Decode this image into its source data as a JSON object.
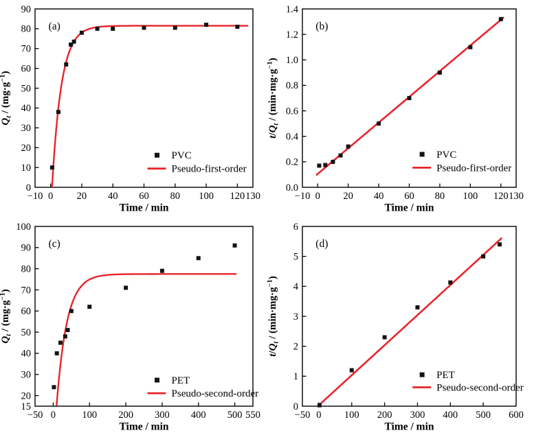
{
  "figure": {
    "background": "#ffffff",
    "frame_color": "#000000",
    "text_color": "#000000",
    "fit_line_color": "#e8232a",
    "marker_color": "#141414"
  },
  "chart_data": [
    {
      "panel": "(a)",
      "type": "scatter",
      "series_label": "PVC",
      "fit_label": "Pseudo-first-order",
      "xlabel": "Time / min",
      "ylabel_tokens": [
        {
          "t": "Q",
          "s": "i"
        },
        {
          "t": "t",
          "s": "sub"
        },
        {
          "t": " / (mg·g",
          "s": "n"
        },
        {
          "t": "−1",
          "s": "sup"
        },
        {
          "t": ")",
          "s": "n"
        }
      ],
      "xlim": [
        -10,
        130
      ],
      "ylim": [
        0,
        90
      ],
      "xticks": [
        -10,
        0,
        20,
        40,
        60,
        80,
        100,
        120,
        130
      ],
      "xtick_labels": [
        "−10",
        "0",
        "20",
        "40",
        "60",
        "80",
        "100",
        "120",
        "130"
      ],
      "yticks": [
        0,
        10,
        20,
        30,
        40,
        50,
        60,
        70,
        80,
        90
      ],
      "ytick_labels": [
        "0",
        "10",
        "20",
        "30",
        "40",
        "50",
        "60",
        "70",
        "80",
        "90"
      ],
      "points": [
        [
          1,
          10
        ],
        [
          5,
          38
        ],
        [
          10,
          62
        ],
        [
          13,
          72
        ],
        [
          15,
          73.5
        ],
        [
          20,
          78
        ],
        [
          30,
          80
        ],
        [
          40,
          80
        ],
        [
          60,
          80.5
        ],
        [
          80,
          80.5
        ],
        [
          100,
          82
        ],
        [
          120,
          81
        ]
      ],
      "fit": {
        "kind": "exp",
        "qe": 81.5,
        "k": 0.165,
        "t0": 0.9,
        "t_start": 0.9,
        "t_end": 127
      },
      "legend": {
        "x": 0.56,
        "rows": [
          0.82,
          0.895
        ],
        "items": [
          {
            "marker": "square",
            "label": "PVC"
          },
          {
            "marker": "line",
            "label": "Pseudo-first-order"
          }
        ]
      }
    },
    {
      "panel": "(b)",
      "type": "scatter",
      "series_label": "PVC",
      "fit_label": "Pseudo-first-order",
      "xlabel": "Time / min",
      "ylabel_tokens": [
        {
          "t": "t",
          "s": "i"
        },
        {
          "t": "/",
          "s": "n"
        },
        {
          "t": "Q",
          "s": "i"
        },
        {
          "t": "t",
          "s": "sub"
        },
        {
          "t": " / (min·mg·g",
          "s": "n"
        },
        {
          "t": "−1",
          "s": "sup"
        },
        {
          "t": ")",
          "s": "n"
        }
      ],
      "xlim": [
        -10,
        130
      ],
      "ylim": [
        0,
        1.4
      ],
      "xticks": [
        -10,
        0,
        20,
        40,
        60,
        80,
        100,
        120,
        130
      ],
      "xtick_labels": [
        "−10",
        "0",
        "20",
        "40",
        "60",
        "80",
        "100",
        "120",
        "130"
      ],
      "yticks": [
        0,
        0.2,
        0.4,
        0.6,
        0.8,
        1.0,
        1.2,
        1.4
      ],
      "ytick_labels": [
        "0.0",
        "0.2",
        "0.4",
        "0.6",
        "0.8",
        "1.0",
        "1.2",
        "1.4"
      ],
      "points": [
        [
          1,
          0.17
        ],
        [
          5,
          0.175
        ],
        [
          10,
          0.2
        ],
        [
          15,
          0.25
        ],
        [
          20,
          0.32
        ],
        [
          40,
          0.5
        ],
        [
          60,
          0.7
        ],
        [
          80,
          0.9
        ],
        [
          100,
          1.1
        ],
        [
          120,
          1.32
        ]
      ],
      "fit": {
        "kind": "linear",
        "x1": -1,
        "y1": 0.095,
        "x2": 122,
        "y2": 1.335
      },
      "legend": {
        "x": 0.56,
        "rows": [
          0.815,
          0.89
        ],
        "items": [
          {
            "marker": "square",
            "label": "PVC"
          },
          {
            "marker": "line",
            "label": "Pseudo-first-order"
          }
        ]
      }
    },
    {
      "panel": "(c)",
      "type": "scatter",
      "series_label": "PET",
      "fit_label": "Pseudo-second-order",
      "xlabel": "Time / min",
      "ylabel_tokens": [
        {
          "t": "Q",
          "s": "i"
        },
        {
          "t": "t",
          "s": "sub"
        },
        {
          "t": " / (mg·g",
          "s": "n"
        },
        {
          "t": "−1",
          "s": "sup"
        },
        {
          "t": ")",
          "s": "n"
        }
      ],
      "xlim": [
        -50,
        550
      ],
      "ylim": [
        15,
        100
      ],
      "xticks": [
        -50,
        0,
        100,
        200,
        300,
        400,
        500,
        550
      ],
      "xtick_labels": [
        "−50",
        "0",
        "100",
        "200",
        "300",
        "400",
        "500",
        "550"
      ],
      "yticks": [
        15,
        20,
        30,
        40,
        50,
        60,
        70,
        80,
        90,
        100
      ],
      "ytick_labels": [
        "15",
        "20",
        "30",
        "40",
        "50",
        "60",
        "70",
        "80",
        "90",
        "100"
      ],
      "points": [
        [
          2,
          24
        ],
        [
          10,
          40
        ],
        [
          20,
          45
        ],
        [
          33,
          48
        ],
        [
          40,
          51
        ],
        [
          50,
          60
        ],
        [
          100,
          62
        ],
        [
          200,
          71
        ],
        [
          300,
          79
        ],
        [
          400,
          85
        ],
        [
          500,
          91
        ]
      ],
      "fit": {
        "kind": "exp",
        "qe": 77.5,
        "k": 0.035,
        "t0": 3,
        "t_start": 9.2,
        "t_end": 505
      },
      "legend": {
        "x": 0.56,
        "rows": [
          0.855,
          0.928
        ],
        "items": [
          {
            "marker": "square",
            "label": "PET"
          },
          {
            "marker": "line",
            "label": "Pseudo-second-order"
          }
        ]
      }
    },
    {
      "panel": "(d)",
      "type": "scatter",
      "series_label": "PET",
      "fit_label": "Pseudo-second-order",
      "xlabel": "Time / min",
      "ylabel_tokens": [
        {
          "t": "t",
          "s": "i"
        },
        {
          "t": "/",
          "s": "n"
        },
        {
          "t": "Q",
          "s": "i"
        },
        {
          "t": "t",
          "s": "sub"
        },
        {
          "t": " / (min·mg·g",
          "s": "n"
        },
        {
          "t": "−1",
          "s": "sup"
        },
        {
          "t": ")",
          "s": "n"
        }
      ],
      "xlim": [
        -50,
        600
      ],
      "ylim": [
        0,
        6
      ],
      "xticks": [
        -50,
        0,
        100,
        200,
        300,
        400,
        500,
        600
      ],
      "xtick_labels": [
        "−50",
        "0",
        "100",
        "200",
        "300",
        "400",
        "500",
        "600"
      ],
      "yticks": [
        0,
        1,
        2,
        3,
        4,
        5,
        6
      ],
      "ytick_labels": [
        "0",
        "1",
        "2",
        "3",
        "4",
        "5",
        "6"
      ],
      "points": [
        [
          2,
          0.03
        ],
        [
          100,
          1.2
        ],
        [
          200,
          2.3
        ],
        [
          300,
          3.3
        ],
        [
          400,
          4.13
        ],
        [
          500,
          5.0
        ],
        [
          550,
          5.4
        ]
      ],
      "fit": {
        "kind": "linear",
        "x1": 0,
        "y1": 0.03,
        "x2": 557,
        "y2": 5.62
      },
      "legend": {
        "x": 0.56,
        "rows": [
          0.825,
          0.895
        ],
        "items": [
          {
            "marker": "square",
            "label": "PET"
          },
          {
            "marker": "line",
            "label": "Pseudo-second-order"
          }
        ]
      }
    }
  ]
}
